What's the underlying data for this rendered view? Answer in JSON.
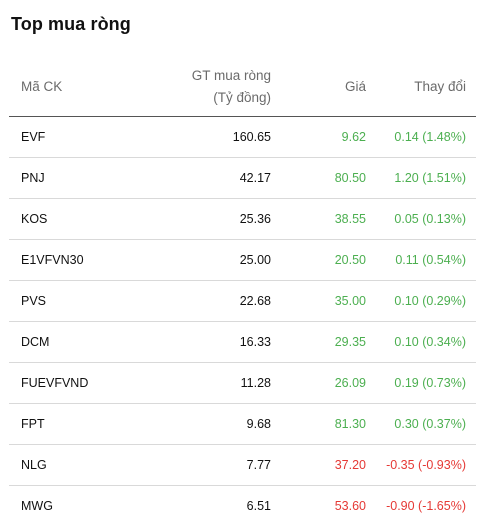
{
  "title": "Top mua ròng",
  "columns": {
    "code": "Mã CK",
    "value_line1": "GT mua ròng",
    "value_line2": "(Tỷ đồng)",
    "price": "Giá",
    "change": "Thay đổi"
  },
  "rows": [
    {
      "code": "EVF",
      "value": "160.65",
      "price": "9.62",
      "change": "0.14 (1.48%)",
      "direction": "up"
    },
    {
      "code": "PNJ",
      "value": "42.17",
      "price": "80.50",
      "change": "1.20 (1.51%)",
      "direction": "up"
    },
    {
      "code": "KOS",
      "value": "25.36",
      "price": "38.55",
      "change": "0.05 (0.13%)",
      "direction": "up"
    },
    {
      "code": "E1VFVN30",
      "value": "25.00",
      "price": "20.50",
      "change": "0.11 (0.54%)",
      "direction": "up"
    },
    {
      "code": "PVS",
      "value": "22.68",
      "price": "35.00",
      "change": "0.10 (0.29%)",
      "direction": "up"
    },
    {
      "code": "DCM",
      "value": "16.33",
      "price": "29.35",
      "change": "0.10 (0.34%)",
      "direction": "up"
    },
    {
      "code": "FUEVFVND",
      "value": "11.28",
      "price": "26.09",
      "change": "0.19 (0.73%)",
      "direction": "up"
    },
    {
      "code": "FPT",
      "value": "9.68",
      "price": "81.30",
      "change": "0.30 (0.37%)",
      "direction": "up"
    },
    {
      "code": "NLG",
      "value": "7.77",
      "price": "37.20",
      "change": "-0.35 (-0.93%)",
      "direction": "down"
    },
    {
      "code": "MWG",
      "value": "6.51",
      "price": "53.60",
      "change": "-0.90 (-1.65%)",
      "direction": "down"
    }
  ],
  "colors": {
    "up": "#4caf50",
    "down": "#e53935"
  }
}
